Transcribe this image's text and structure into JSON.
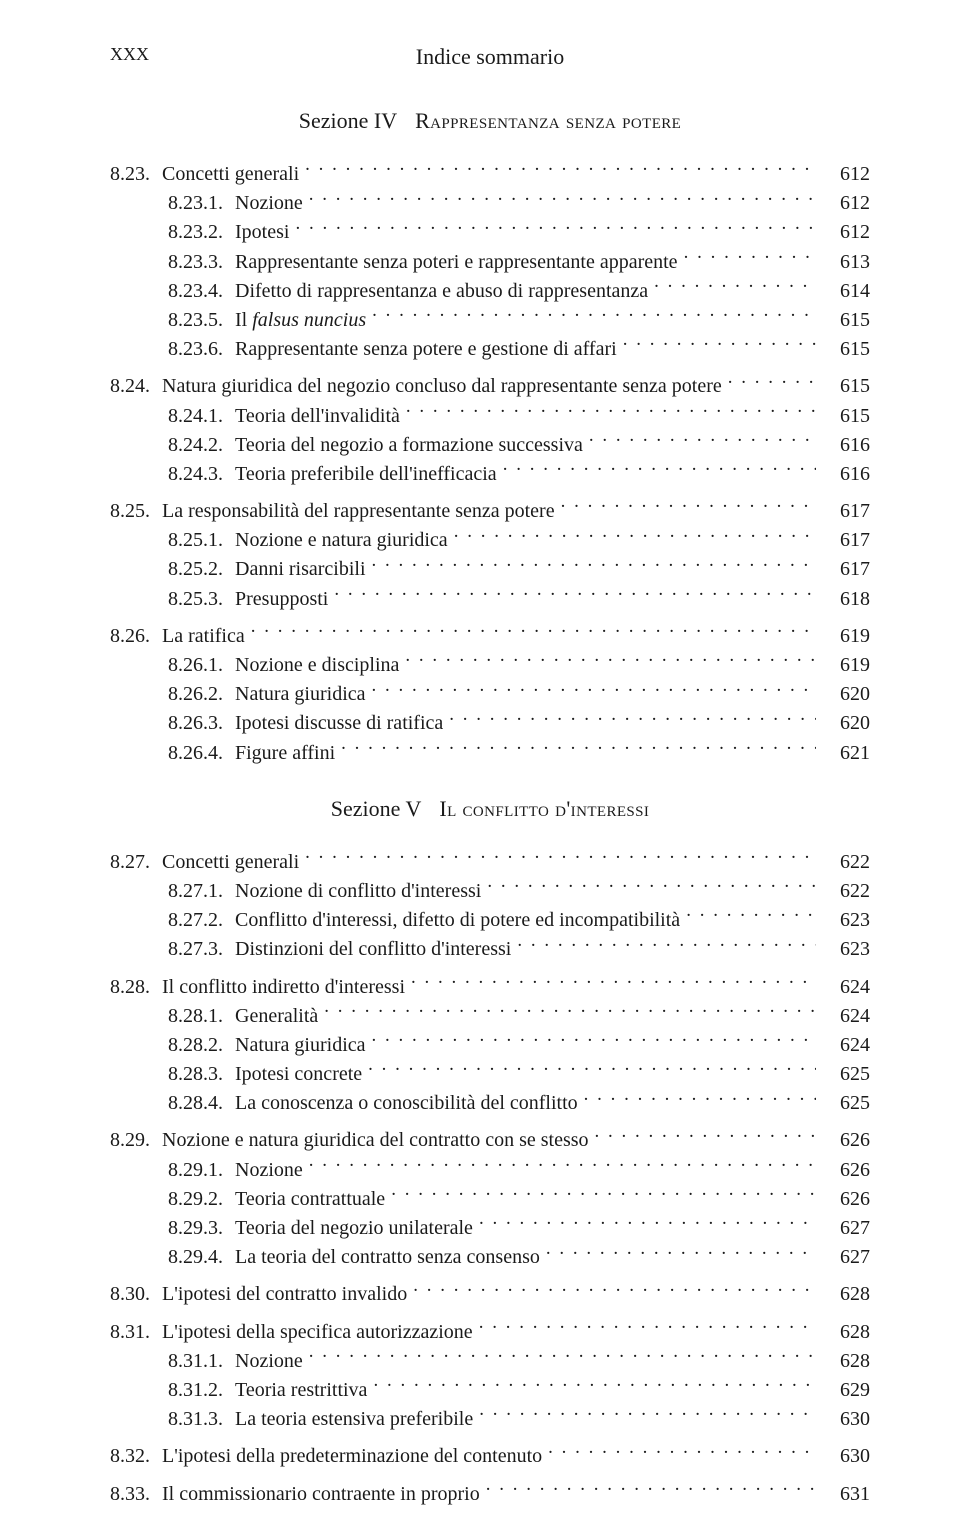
{
  "header": {
    "page_number": "XXX",
    "running_title": "Indice sommario"
  },
  "sections": [
    {
      "heading_prefix": "Sezione IV",
      "heading_title": "Rappresentanza senza potere",
      "entries": [
        {
          "level": 1,
          "num": "8.23.",
          "label": "Concetti generali",
          "page": "612",
          "gap": false
        },
        {
          "level": 2,
          "num": "8.23.1.",
          "label": "Nozione",
          "page": "612",
          "gap": false
        },
        {
          "level": 2,
          "num": "8.23.2.",
          "label": "Ipotesi",
          "page": "612",
          "gap": false
        },
        {
          "level": 2,
          "num": "8.23.3.",
          "label": "Rappresentante senza poteri e rappresentante apparente",
          "page": "613",
          "gap": false
        },
        {
          "level": 2,
          "num": "8.23.4.",
          "label": "Difetto di rappresentanza e abuso di rappresentanza",
          "page": "614",
          "gap": false
        },
        {
          "level": 2,
          "num": "8.23.5.",
          "label_html": "Il <span class=\"italic\">falsus nuncius</span>",
          "page": "615",
          "gap": false
        },
        {
          "level": 2,
          "num": "8.23.6.",
          "label": "Rappresentante senza potere e gestione di affari",
          "page": "615",
          "gap": false
        },
        {
          "level": 1,
          "num": "8.24.",
          "label": "Natura giuridica del negozio concluso dal rappresentante senza potere",
          "page": "615",
          "gap": true
        },
        {
          "level": 2,
          "num": "8.24.1.",
          "label": "Teoria dell'invalidità",
          "page": "615",
          "gap": false
        },
        {
          "level": 2,
          "num": "8.24.2.",
          "label": "Teoria del negozio a formazione successiva",
          "page": "616",
          "gap": false
        },
        {
          "level": 2,
          "num": "8.24.3.",
          "label": "Teoria preferibile dell'inefficacia",
          "page": "616",
          "gap": false
        },
        {
          "level": 1,
          "num": "8.25.",
          "label": "La responsabilità del rappresentante senza potere",
          "page": "617",
          "gap": true
        },
        {
          "level": 2,
          "num": "8.25.1.",
          "label": "Nozione e natura giuridica",
          "page": "617",
          "gap": false
        },
        {
          "level": 2,
          "num": "8.25.2.",
          "label": "Danni risarcibili",
          "page": "617",
          "gap": false
        },
        {
          "level": 2,
          "num": "8.25.3.",
          "label": "Presupposti",
          "page": "618",
          "gap": false
        },
        {
          "level": 1,
          "num": "8.26.",
          "label": "La ratifica",
          "page": "619",
          "gap": true
        },
        {
          "level": 2,
          "num": "8.26.1.",
          "label": "Nozione e disciplina",
          "page": "619",
          "gap": false
        },
        {
          "level": 2,
          "num": "8.26.2.",
          "label": "Natura giuridica",
          "page": "620",
          "gap": false
        },
        {
          "level": 2,
          "num": "8.26.3.",
          "label": "Ipotesi discusse di ratifica",
          "page": "620",
          "gap": false
        },
        {
          "level": 2,
          "num": "8.26.4.",
          "label": "Figure affini",
          "page": "621",
          "gap": false
        }
      ]
    },
    {
      "heading_prefix": "Sezione V",
      "heading_title": "Il conflitto d'interessi",
      "entries": [
        {
          "level": 1,
          "num": "8.27.",
          "label": "Concetti generali",
          "page": "622",
          "gap": false
        },
        {
          "level": 2,
          "num": "8.27.1.",
          "label": "Nozione di conflitto d'interessi",
          "page": "622",
          "gap": false
        },
        {
          "level": 2,
          "num": "8.27.2.",
          "label": "Conflitto d'interessi, difetto di potere ed incompatibilità",
          "page": "623",
          "gap": false
        },
        {
          "level": 2,
          "num": "8.27.3.",
          "label": "Distinzioni del conflitto d'interessi",
          "page": "623",
          "gap": false
        },
        {
          "level": 1,
          "num": "8.28.",
          "label": "Il conflitto indiretto d'interessi",
          "page": "624",
          "gap": true
        },
        {
          "level": 2,
          "num": "8.28.1.",
          "label": "Generalità",
          "page": "624",
          "gap": false
        },
        {
          "level": 2,
          "num": "8.28.2.",
          "label": "Natura giuridica",
          "page": "624",
          "gap": false
        },
        {
          "level": 2,
          "num": "8.28.3.",
          "label": "Ipotesi concrete",
          "page": "625",
          "gap": false
        },
        {
          "level": 2,
          "num": "8.28.4.",
          "label": "La conoscenza o conoscibilità del conflitto",
          "page": "625",
          "gap": false
        },
        {
          "level": 1,
          "num": "8.29.",
          "label": "Nozione e natura giuridica del contratto con se stesso",
          "page": "626",
          "gap": true
        },
        {
          "level": 2,
          "num": "8.29.1.",
          "label": "Nozione",
          "page": "626",
          "gap": false
        },
        {
          "level": 2,
          "num": "8.29.2.",
          "label": "Teoria contrattuale",
          "page": "626",
          "gap": false
        },
        {
          "level": 2,
          "num": "8.29.3.",
          "label": "Teoria del negozio unilaterale",
          "page": "627",
          "gap": false
        },
        {
          "level": 2,
          "num": "8.29.4.",
          "label": "La teoria del contratto senza consenso",
          "page": "627",
          "gap": false
        },
        {
          "level": 1,
          "num": "8.30.",
          "label": "L'ipotesi del contratto invalido",
          "page": "628",
          "gap": true
        },
        {
          "level": 1,
          "num": "8.31.",
          "label": "L'ipotesi della specifica autorizzazione",
          "page": "628",
          "gap": true
        },
        {
          "level": 2,
          "num": "8.31.1.",
          "label": "Nozione",
          "page": "628",
          "gap": false
        },
        {
          "level": 2,
          "num": "8.31.2.",
          "label": "Teoria restrittiva",
          "page": "629",
          "gap": false
        },
        {
          "level": 2,
          "num": "8.31.3.",
          "label": "La teoria estensiva preferibile",
          "page": "630",
          "gap": false
        },
        {
          "level": 1,
          "num": "8.32.",
          "label": "L'ipotesi della predeterminazione del contenuto",
          "page": "630",
          "gap": true
        },
        {
          "level": 1,
          "num": "8.33.",
          "label": "Il commissionario contraente in proprio",
          "page": "631",
          "gap": true
        }
      ]
    }
  ]
}
